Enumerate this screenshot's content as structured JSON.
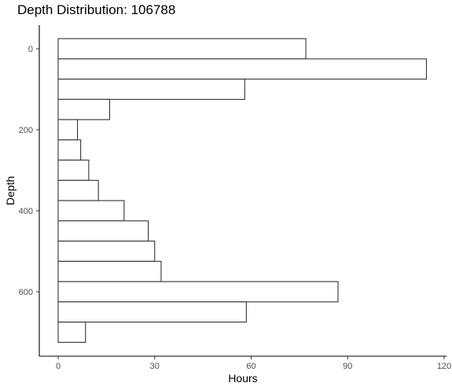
{
  "chart_data": {
    "type": "bar",
    "orientation": "horizontal",
    "title": "Depth Distribution: 106788",
    "xlabel": "Hours",
    "ylabel": "Depth",
    "xlim": [
      0,
      120
    ],
    "ylim": [
      725,
      -25
    ],
    "y_reversed": true,
    "x_ticks": [
      0,
      30,
      60,
      90,
      120
    ],
    "x_tick_labels": [
      "0",
      "30",
      "60",
      "90",
      "120"
    ],
    "y_ticks": [
      0,
      200,
      400,
      600
    ],
    "y_tick_labels": [
      "0",
      "200",
      "400",
      "600"
    ],
    "bin_width": 50,
    "bins": [
      {
        "depth": 0,
        "hours": 77
      },
      {
        "depth": 50,
        "hours": 114.5
      },
      {
        "depth": 100,
        "hours": 58
      },
      {
        "depth": 150,
        "hours": 16
      },
      {
        "depth": 200,
        "hours": 6
      },
      {
        "depth": 250,
        "hours": 7
      },
      {
        "depth": 300,
        "hours": 9.5
      },
      {
        "depth": 350,
        "hours": 12.5
      },
      {
        "depth": 400,
        "hours": 20.5
      },
      {
        "depth": 450,
        "hours": 28
      },
      {
        "depth": 500,
        "hours": 30
      },
      {
        "depth": 550,
        "hours": 32
      },
      {
        "depth": 600,
        "hours": 87
      },
      {
        "depth": 650,
        "hours": 58.5
      },
      {
        "depth": 700,
        "hours": 8.5
      }
    ],
    "bar_fill": "#ffffff",
    "bar_stroke": "#333333",
    "grid": false,
    "legend": "none"
  }
}
